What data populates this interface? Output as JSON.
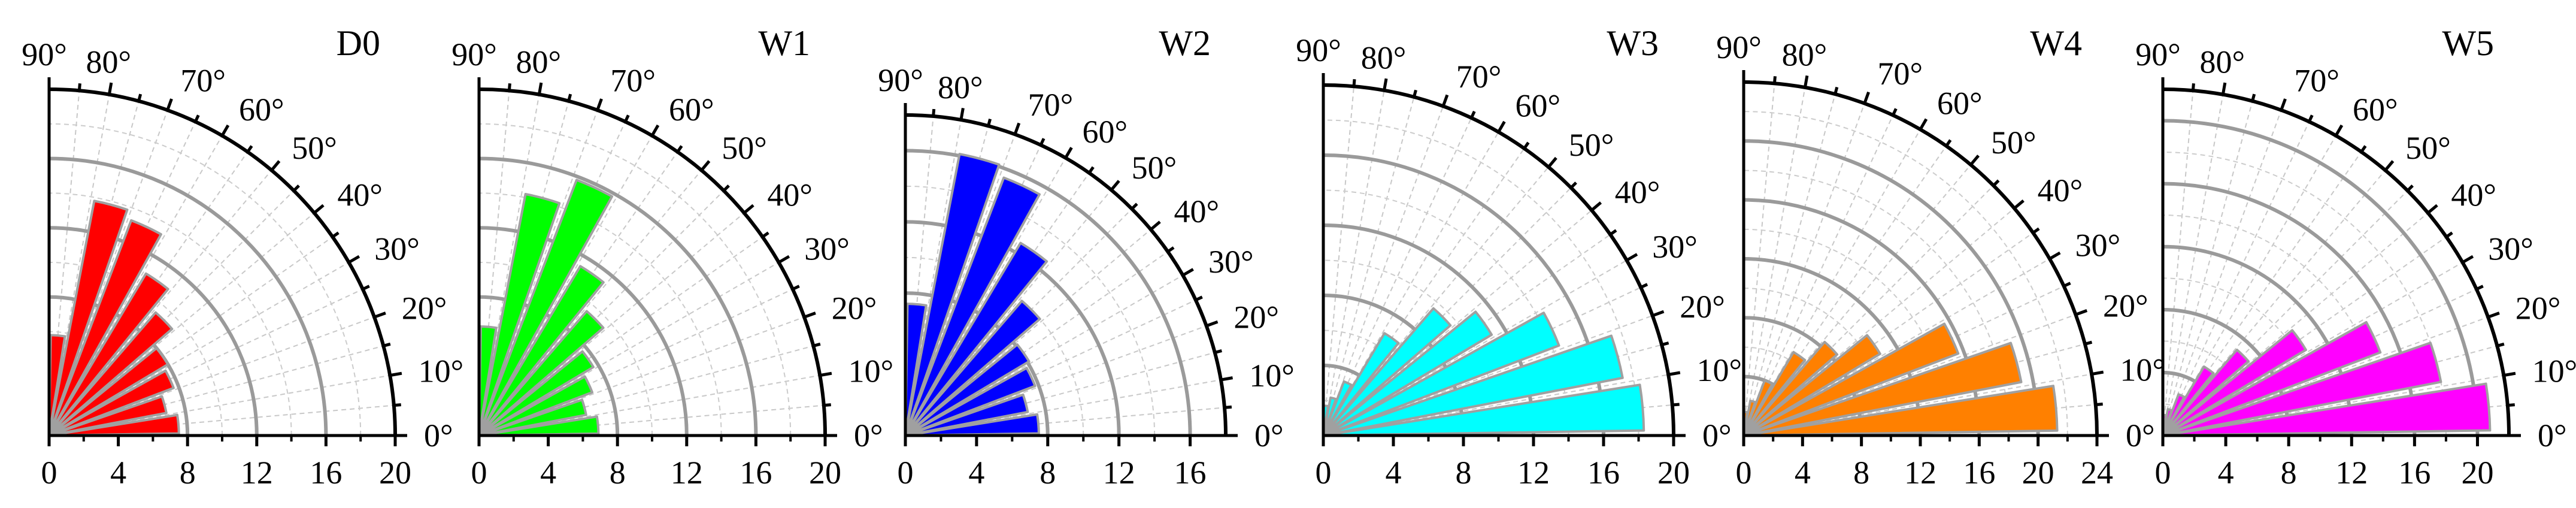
{
  "chart_data": [
    {
      "type": "polar-bar",
      "title": "D0",
      "color": "#ff0000",
      "rmax": 20,
      "r_ticks": [
        "0",
        "4",
        "8",
        "12",
        "16",
        "20"
      ],
      "angle_ticks": [
        "0°",
        "10°",
        "20°",
        "30°",
        "40°",
        "50°",
        "60°",
        "70°",
        "80°",
        "90°"
      ],
      "bins": [
        {
          "from": 0,
          "to": 10,
          "value": 7.5
        },
        {
          "from": 10,
          "to": 20,
          "value": 6.9
        },
        {
          "from": 20,
          "to": 30,
          "value": 7.7
        },
        {
          "from": 30,
          "to": 40,
          "value": 8.0
        },
        {
          "from": 40,
          "to": 50,
          "value": 9.4
        },
        {
          "from": 50,
          "to": 60,
          "value": 10.9
        },
        {
          "from": 60,
          "to": 70,
          "value": 13.3
        },
        {
          "from": 70,
          "to": 80,
          "value": 13.8
        },
        {
          "from": 80,
          "to": 90,
          "value": 5.8
        }
      ]
    },
    {
      "type": "polar-bar",
      "title": "W1",
      "color": "#00ff00",
      "rmax": 20,
      "r_ticks": [
        "0",
        "4",
        "8",
        "12",
        "16",
        "20"
      ],
      "angle_ticks": [
        "0°",
        "10°",
        "20°",
        "30°",
        "40°",
        "50°",
        "60°",
        "70°",
        "80°",
        "90°"
      ],
      "bins": [
        {
          "from": 0,
          "to": 10,
          "value": 6.9
        },
        {
          "from": 10,
          "to": 20,
          "value": 6.3
        },
        {
          "from": 20,
          "to": 30,
          "value": 7.0
        },
        {
          "from": 30,
          "to": 40,
          "value": 7.7
        },
        {
          "from": 40,
          "to": 50,
          "value": 9.5
        },
        {
          "from": 50,
          "to": 60,
          "value": 11.4
        },
        {
          "from": 60,
          "to": 70,
          "value": 15.8
        },
        {
          "from": 70,
          "to": 80,
          "value": 14.2
        },
        {
          "from": 80,
          "to": 90,
          "value": 6.3
        }
      ]
    },
    {
      "type": "polar-bar",
      "title": "W2",
      "color": "#0000ff",
      "rmax": 18,
      "r_ticks": [
        "0",
        "4",
        "8",
        "12",
        "16"
      ],
      "angle_ticks": [
        "0°",
        "10°",
        "20°",
        "30°",
        "40°",
        "50°",
        "60°",
        "70°",
        "80°",
        "90°"
      ],
      "bins": [
        {
          "from": 0,
          "to": 10,
          "value": 7.5
        },
        {
          "from": 10,
          "to": 20,
          "value": 7.0
        },
        {
          "from": 20,
          "to": 30,
          "value": 7.8
        },
        {
          "from": 30,
          "to": 40,
          "value": 8.1
        },
        {
          "from": 40,
          "to": 50,
          "value": 10.0
        },
        {
          "from": 50,
          "to": 60,
          "value": 12.6
        },
        {
          "from": 60,
          "to": 70,
          "value": 15.5
        },
        {
          "from": 70,
          "to": 80,
          "value": 16.1
        },
        {
          "from": 80,
          "to": 90,
          "value": 7.4
        }
      ]
    },
    {
      "type": "polar-bar",
      "title": "W3",
      "color": "#00ffff",
      "rmax": 20,
      "r_ticks": [
        "0",
        "4",
        "8",
        "12",
        "16",
        "20"
      ],
      "angle_ticks": [
        "0°",
        "10°",
        "20°",
        "30°",
        "40°",
        "50°",
        "60°",
        "70°",
        "80°",
        "90°"
      ],
      "bins": [
        {
          "from": 0,
          "to": 10,
          "value": 18.3
        },
        {
          "from": 10,
          "to": 20,
          "value": 17.4
        },
        {
          "from": 20,
          "to": 30,
          "value": 14.4
        },
        {
          "from": 30,
          "to": 40,
          "value": 11.2
        },
        {
          "from": 40,
          "to": 50,
          "value": 9.6
        },
        {
          "from": 50,
          "to": 60,
          "value": 6.8
        },
        {
          "from": 60,
          "to": 70,
          "value": 3.3
        },
        {
          "from": 70,
          "to": 80,
          "value": 2.2
        },
        {
          "from": 80,
          "to": 90,
          "value": 1.7
        }
      ]
    },
    {
      "type": "polar-bar",
      "title": "W4",
      "color": "#ff8000",
      "rmax": 24,
      "r_ticks": [
        "0",
        "4",
        "8",
        "12",
        "16",
        "20",
        "24"
      ],
      "angle_ticks": [
        "0°",
        "10°",
        "20°",
        "30°",
        "40°",
        "50°",
        "60°",
        "70°",
        "80°",
        "90°"
      ],
      "bins": [
        {
          "from": 0,
          "to": 10,
          "value": 21.3
        },
        {
          "from": 10,
          "to": 20,
          "value": 19.2
        },
        {
          "from": 20,
          "to": 30,
          "value": 15.6
        },
        {
          "from": 30,
          "to": 40,
          "value": 10.8
        },
        {
          "from": 40,
          "to": 50,
          "value": 8.4
        },
        {
          "from": 50,
          "to": 60,
          "value": 6.6
        },
        {
          "from": 60,
          "to": 70,
          "value": 4.0
        },
        {
          "from": 70,
          "to": 80,
          "value": 2.4
        },
        {
          "from": 80,
          "to": 90,
          "value": 1.6
        }
      ]
    },
    {
      "type": "polar-bar",
      "title": "W5",
      "color": "#ff00ff",
      "rmax": 22,
      "r_ticks": [
        "0",
        "4",
        "8",
        "12",
        "16",
        "20"
      ],
      "angle_ticks": [
        "0°",
        "10°",
        "20°",
        "30°",
        "40°",
        "50°",
        "60°",
        "70°",
        "80°",
        "90°"
      ],
      "bins": [
        {
          "from": 0,
          "to": 10,
          "value": 20.8
        },
        {
          "from": 10,
          "to": 20,
          "value": 18.0
        },
        {
          "from": 20,
          "to": 30,
          "value": 14.8
        },
        {
          "from": 30,
          "to": 40,
          "value": 10.6
        },
        {
          "from": 40,
          "to": 50,
          "value": 7.2
        },
        {
          "from": 50,
          "to": 60,
          "value": 5.1
        },
        {
          "from": 60,
          "to": 70,
          "value": 2.8
        },
        {
          "from": 70,
          "to": 80,
          "value": 1.7
        },
        {
          "from": 80,
          "to": 90,
          "value": 1.3
        }
      ]
    }
  ]
}
